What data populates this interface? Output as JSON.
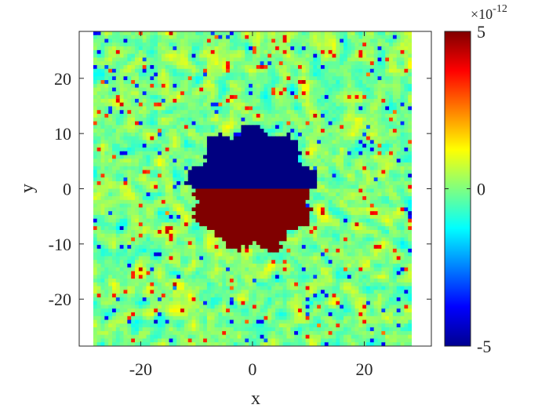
{
  "chart_data": {
    "type": "heatmap",
    "title": "",
    "xlabel": "x",
    "ylabel": "y",
    "xlim": [
      -31,
      32
    ],
    "ylim": [
      -28.5,
      28.5
    ],
    "data_extent": {
      "x": [
        -28.5,
        28.5
      ],
      "y": [
        -28.5,
        28.5
      ]
    },
    "xticks": [
      -20,
      0,
      20
    ],
    "xtick_labels": [
      "-20",
      "0",
      "20"
    ],
    "yticks": [
      20,
      10,
      0,
      -10,
      -20
    ],
    "ytick_labels": [
      "20",
      "10",
      "0",
      "-10",
      "-20"
    ],
    "colormap": "jet",
    "clim": [
      -5,
      5
    ],
    "colorbar": {
      "ticks": [
        5,
        0,
        -5
      ],
      "tick_labels": [
        "5",
        "0",
        "-5"
      ],
      "exponent_label": "×10",
      "exponent_power": "-12"
    },
    "structure": {
      "background_value": 0,
      "background_noise_amplitude": 2.5,
      "disc_radius": 11,
      "disc_center": [
        0,
        0
      ],
      "upper_half_value": -5,
      "lower_half_value": 5
    },
    "grid": false
  }
}
